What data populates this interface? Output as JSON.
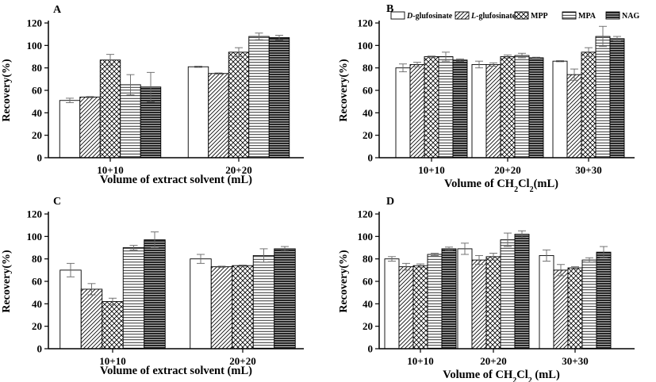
{
  "legend": [
    {
      "prefix": "D",
      "rest": "-glufosinate",
      "pattern": "blank"
    },
    {
      "prefix": "L",
      "rest": "-glufosinate",
      "pattern": "diag"
    },
    {
      "prefix": "",
      "rest": "MPP",
      "pattern": "cross"
    },
    {
      "prefix": "",
      "rest": "MPA",
      "pattern": "horiz"
    },
    {
      "prefix": "",
      "rest": "NAG",
      "pattern": "dense"
    }
  ],
  "chart_data": [
    {
      "type": "bar",
      "panel": "A",
      "ylabel": "Recovery(%)",
      "xlabel": "Volume of extract solvent (mL)",
      "ylim": [
        0,
        120
      ],
      "yticks": [
        0,
        20,
        40,
        60,
        80,
        100,
        120
      ],
      "categories": [
        "10+10",
        "20+20"
      ],
      "series": [
        {
          "name": "D-glufosinate",
          "values": [
            51,
            81
          ],
          "errors": [
            2,
            0.5
          ]
        },
        {
          "name": "L-glufosinate",
          "values": [
            54,
            75
          ],
          "errors": [
            0.5,
            0.5
          ]
        },
        {
          "name": "MPP",
          "values": [
            87,
            94
          ],
          "errors": [
            5,
            4
          ]
        },
        {
          "name": "MPA",
          "values": [
            65,
            108
          ],
          "errors": [
            9,
            3
          ]
        },
        {
          "name": "NAG",
          "values": [
            63,
            107
          ],
          "errors": [
            13,
            2
          ]
        }
      ]
    },
    {
      "type": "bar",
      "panel": "B",
      "ylabel": "Recovery(%)",
      "xlabel_parts": [
        "Volume of CH",
        "2",
        "Cl",
        "2",
        "(mL)"
      ],
      "ylim": [
        0,
        120
      ],
      "yticks": [
        0,
        20,
        40,
        60,
        80,
        100,
        120
      ],
      "categories": [
        "10+10",
        "20+20",
        "30+30"
      ],
      "series": [
        {
          "name": "D-glufosinate",
          "values": [
            80,
            83,
            86
          ],
          "errors": [
            3.5,
            3,
            0.5
          ]
        },
        {
          "name": "L-glufosinate",
          "values": [
            83,
            83,
            74
          ],
          "errors": [
            2,
            1.5,
            5
          ]
        },
        {
          "name": "MPP",
          "values": [
            90,
            90,
            94
          ],
          "errors": [
            0.5,
            1.5,
            4
          ]
        },
        {
          "name": "MPA",
          "values": [
            90,
            91,
            108
          ],
          "errors": [
            4,
            2,
            9
          ]
        },
        {
          "name": "NAG",
          "values": [
            87,
            89,
            106
          ],
          "errors": [
            1,
            0.5,
            2
          ]
        }
      ]
    },
    {
      "type": "bar",
      "panel": "C",
      "ylabel": "Recovery(%)",
      "xlabel": "Volume of extract solvent (mL)",
      "ylim": [
        0,
        120
      ],
      "yticks": [
        0,
        20,
        40,
        60,
        80,
        100,
        120
      ],
      "categories": [
        "10+10",
        "20+20"
      ],
      "series": [
        {
          "name": "D-glufosinate",
          "values": [
            70,
            80
          ],
          "errors": [
            6,
            4
          ]
        },
        {
          "name": "L-glufosinate",
          "values": [
            53,
            73
          ],
          "errors": [
            5,
            0.5
          ]
        },
        {
          "name": "MPP",
          "values": [
            42,
            74
          ],
          "errors": [
            3,
            0.5
          ]
        },
        {
          "name": "MPA",
          "values": [
            90,
            83
          ],
          "errors": [
            2,
            6
          ]
        },
        {
          "name": "NAG",
          "values": [
            97,
            89
          ],
          "errors": [
            7,
            2
          ]
        }
      ]
    },
    {
      "type": "bar",
      "panel": "D",
      "ylabel": "Recovery(%)",
      "xlabel_parts": [
        "Volume of CH",
        "2",
        "Cl",
        "2",
        " (mL)"
      ],
      "ylim": [
        0,
        120
      ],
      "yticks": [
        0,
        20,
        40,
        60,
        80,
        100,
        120
      ],
      "categories": [
        "10+10",
        "20+20",
        "30+30"
      ],
      "series": [
        {
          "name": "D-glufosinate",
          "values": [
            80,
            89,
            83
          ],
          "errors": [
            2,
            5,
            5
          ]
        },
        {
          "name": "L-glufosinate",
          "values": [
            73,
            79,
            70
          ],
          "errors": [
            3,
            4,
            5
          ]
        },
        {
          "name": "MPP",
          "values": [
            74,
            82,
            72
          ],
          "errors": [
            1.5,
            3,
            1
          ]
        },
        {
          "name": "MPA",
          "values": [
            84,
            97,
            79
          ],
          "errors": [
            1,
            6,
            2
          ]
        },
        {
          "name": "NAG",
          "values": [
            89,
            102,
            86
          ],
          "errors": [
            1.5,
            3,
            5
          ]
        }
      ]
    }
  ]
}
